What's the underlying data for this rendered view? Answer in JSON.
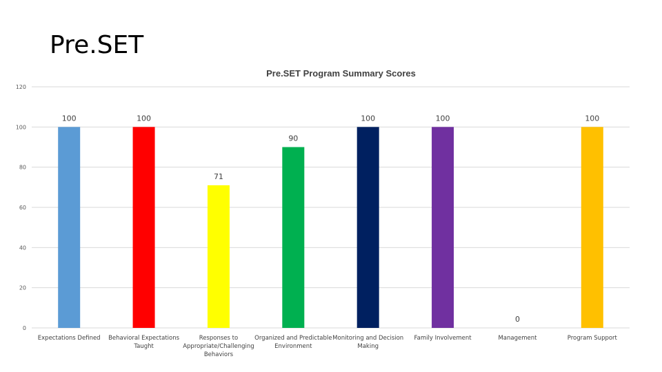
{
  "slide": {
    "title": "Pre.SET"
  },
  "chart_data": {
    "type": "bar",
    "title": "Pre.SET Program Summary Scores",
    "categories": [
      [
        "Expectations Defined"
      ],
      [
        "Behavioral Expectations",
        "Taught"
      ],
      [
        "Responses to",
        "Appropriate/Challenging",
        "Behaviors"
      ],
      [
        "Organized and Predictable",
        "Environment"
      ],
      [
        "Monitoring and Decision",
        "Making"
      ],
      [
        "Family Involvement"
      ],
      [
        "Management"
      ],
      [
        "Program Support"
      ]
    ],
    "values": [
      100,
      100,
      71,
      90,
      100,
      100,
      0,
      100
    ],
    "colors": [
      "#5b9bd5",
      "#ff0000",
      "#ffff00",
      "#00b050",
      "#002060",
      "#7030a0",
      "#a5a5a5",
      "#ffc000"
    ],
    "ylim": [
      0,
      120
    ],
    "yticks": [
      0,
      20,
      40,
      60,
      80,
      100,
      120
    ],
    "grid": true,
    "legend": "none"
  }
}
